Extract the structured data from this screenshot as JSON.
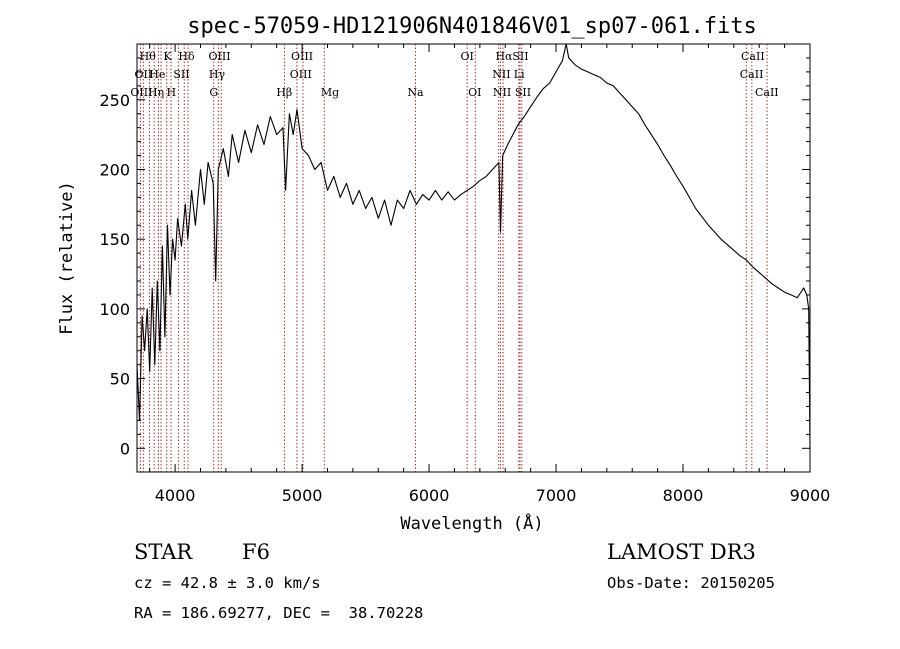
{
  "chart_data": {
    "type": "line",
    "title": "spec-57059-HD121906N401846V01_sp07-061.fits",
    "xlabel": "Wavelength (Å)",
    "ylabel": "Flux (relative)",
    "xlim": [
      3700,
      9000
    ],
    "ylim": [
      -17,
      290
    ],
    "x_ticks": [
      4000,
      5000,
      6000,
      7000,
      8000,
      9000
    ],
    "y_ticks": [
      0,
      50,
      100,
      150,
      200,
      250
    ],
    "series": [
      {
        "name": "spectrum",
        "points": [
          [
            3700,
            60
          ],
          [
            3720,
            20
          ],
          [
            3740,
            95
          ],
          [
            3760,
            70
          ],
          [
            3780,
            100
          ],
          [
            3800,
            55
          ],
          [
            3820,
            115
          ],
          [
            3840,
            60
          ],
          [
            3860,
            120
          ],
          [
            3880,
            70
          ],
          [
            3900,
            145
          ],
          [
            3920,
            80
          ],
          [
            3940,
            160
          ],
          [
            3960,
            110
          ],
          [
            3980,
            150
          ],
          [
            4000,
            135
          ],
          [
            4020,
            165
          ],
          [
            4050,
            145
          ],
          [
            4080,
            175
          ],
          [
            4100,
            150
          ],
          [
            4130,
            185
          ],
          [
            4160,
            160
          ],
          [
            4200,
            200
          ],
          [
            4230,
            175
          ],
          [
            4260,
            205
          ],
          [
            4300,
            190
          ],
          [
            4320,
            120
          ],
          [
            4340,
            200
          ],
          [
            4380,
            215
          ],
          [
            4420,
            195
          ],
          [
            4450,
            225
          ],
          [
            4500,
            205
          ],
          [
            4550,
            228
          ],
          [
            4600,
            212
          ],
          [
            4650,
            232
          ],
          [
            4700,
            218
          ],
          [
            4750,
            238
          ],
          [
            4800,
            225
          ],
          [
            4850,
            230
          ],
          [
            4870,
            185
          ],
          [
            4900,
            240
          ],
          [
            4930,
            225
          ],
          [
            4960,
            243
          ],
          [
            5000,
            215
          ],
          [
            5050,
            210
          ],
          [
            5100,
            200
          ],
          [
            5150,
            205
          ],
          [
            5200,
            185
          ],
          [
            5250,
            195
          ],
          [
            5300,
            180
          ],
          [
            5350,
            190
          ],
          [
            5400,
            175
          ],
          [
            5450,
            185
          ],
          [
            5500,
            172
          ],
          [
            5550,
            180
          ],
          [
            5600,
            165
          ],
          [
            5650,
            178
          ],
          [
            5700,
            160
          ],
          [
            5750,
            178
          ],
          [
            5800,
            172
          ],
          [
            5850,
            185
          ],
          [
            5900,
            175
          ],
          [
            5950,
            182
          ],
          [
            6000,
            178
          ],
          [
            6050,
            185
          ],
          [
            6100,
            178
          ],
          [
            6150,
            184
          ],
          [
            6200,
            178
          ],
          [
            6250,
            182
          ],
          [
            6300,
            185
          ],
          [
            6350,
            188
          ],
          [
            6400,
            192
          ],
          [
            6450,
            195
          ],
          [
            6500,
            200
          ],
          [
            6550,
            205
          ],
          [
            6563,
            155
          ],
          [
            6580,
            210
          ],
          [
            6620,
            218
          ],
          [
            6660,
            225
          ],
          [
            6700,
            232
          ],
          [
            6750,
            238
          ],
          [
            6800,
            245
          ],
          [
            6850,
            252
          ],
          [
            6900,
            258
          ],
          [
            6950,
            262
          ],
          [
            7000,
            270
          ],
          [
            7050,
            278
          ],
          [
            7080,
            290
          ],
          [
            7100,
            280
          ],
          [
            7150,
            275
          ],
          [
            7200,
            272
          ],
          [
            7250,
            270
          ],
          [
            7300,
            268
          ],
          [
            7350,
            266
          ],
          [
            7400,
            262
          ],
          [
            7450,
            260
          ],
          [
            7500,
            255
          ],
          [
            7550,
            250
          ],
          [
            7600,
            245
          ],
          [
            7650,
            240
          ],
          [
            7700,
            232
          ],
          [
            7750,
            225
          ],
          [
            7800,
            218
          ],
          [
            7850,
            210
          ],
          [
            7900,
            203
          ],
          [
            7950,
            195
          ],
          [
            8000,
            188
          ],
          [
            8050,
            180
          ],
          [
            8100,
            172
          ],
          [
            8150,
            166
          ],
          [
            8200,
            160
          ],
          [
            8250,
            155
          ],
          [
            8300,
            150
          ],
          [
            8350,
            146
          ],
          [
            8400,
            142
          ],
          [
            8450,
            138
          ],
          [
            8500,
            135
          ],
          [
            8550,
            130
          ],
          [
            8600,
            126
          ],
          [
            8650,
            122
          ],
          [
            8700,
            118
          ],
          [
            8750,
            115
          ],
          [
            8800,
            112
          ],
          [
            8850,
            110
          ],
          [
            8900,
            108
          ],
          [
            8950,
            115
          ],
          [
            8975,
            110
          ],
          [
            8990,
            100
          ],
          [
            9000,
            0
          ]
        ]
      }
    ],
    "line_markers": [
      {
        "wavelength": 3727,
        "labels": [
          "OII",
          "OIII"
        ]
      },
      {
        "wavelength": 3750,
        "labels": [
          "Hθ"
        ]
      },
      {
        "wavelength": 3798,
        "labels": [
          "Hθ"
        ]
      },
      {
        "wavelength": 3835,
        "labels": [
          "Hη"
        ]
      },
      {
        "wavelength": 3869,
        "labels": [
          "He",
          "Hη"
        ]
      },
      {
        "wavelength": 3889,
        "labels": [
          "He"
        ]
      },
      {
        "wavelength": 3934,
        "labels": [
          "K"
        ]
      },
      {
        "wavelength": 3968,
        "labels": [
          "H"
        ]
      },
      {
        "wavelength": 4026,
        "labels": [
          "He"
        ]
      },
      {
        "wavelength": 4072,
        "labels": [
          "SII"
        ]
      },
      {
        "wavelength": 4102,
        "labels": [
          "Hδ"
        ]
      },
      {
        "wavelength": 4304,
        "labels": [
          "G"
        ]
      },
      {
        "wavelength": 4340,
        "labels": [
          "Hγ"
        ]
      },
      {
        "wavelength": 4363,
        "labels": [
          "OIII"
        ]
      },
      {
        "wavelength": 4861,
        "labels": [
          "Hβ"
        ]
      },
      {
        "wavelength": 4959,
        "labels": [
          "OIII"
        ]
      },
      {
        "wavelength": 5007,
        "labels": [
          "OIII"
        ]
      },
      {
        "wavelength": 5175,
        "labels": [
          "Mg"
        ]
      },
      {
        "wavelength": 5893,
        "labels": [
          "Na"
        ]
      },
      {
        "wavelength": 6300,
        "labels": [
          "OI"
        ]
      },
      {
        "wavelength": 6364,
        "labels": [
          "OI"
        ]
      },
      {
        "wavelength": 6548,
        "labels": [
          "NII"
        ]
      },
      {
        "wavelength": 6563,
        "labels": [
          "Hα"
        ]
      },
      {
        "wavelength": 6583,
        "labels": [
          "NII"
        ]
      },
      {
        "wavelength": 6707,
        "labels": [
          "Li"
        ]
      },
      {
        "wavelength": 6716,
        "labels": [
          "SII"
        ]
      },
      {
        "wavelength": 6731,
        "labels": [
          "SII"
        ]
      },
      {
        "wavelength": 8498,
        "labels": [
          "CaII"
        ]
      },
      {
        "wavelength": 8542,
        "labels": [
          "CaII"
        ]
      },
      {
        "wavelength": 8662,
        "labels": [
          "CaII"
        ]
      }
    ],
    "line_label_rows": [
      [
        "Hθ",
        "K",
        "Hδ",
        "OIII",
        "OIII",
        "OI",
        "Hα",
        "SII",
        "CaII"
      ],
      [
        "OII",
        "He",
        "SII",
        "Hγ",
        "OIII",
        "NII",
        "Li",
        "CaII"
      ],
      [
        "OIII",
        "Hη",
        "H",
        "G",
        "Hβ",
        "Mg",
        "Na",
        "OI",
        "NII",
        "SII",
        "CaII"
      ]
    ]
  },
  "footer": {
    "object_type": "STAR",
    "subclass": "F6",
    "survey": "LAMOST DR3",
    "redshift": "cz = 42.8 ± 3.0 km/s",
    "obs_date": "Obs-Date: 20150205",
    "coords": "RA = 186.69277, DEC =  38.70228"
  },
  "colors": {
    "line": "#000000",
    "marker": "#b03030"
  }
}
